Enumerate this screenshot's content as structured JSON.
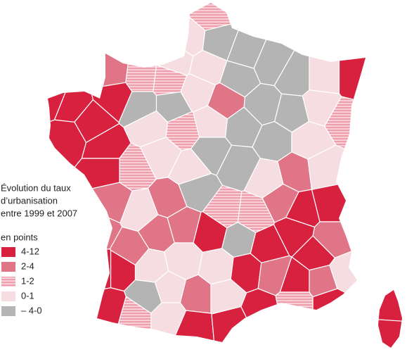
{
  "legend": {
    "title_lines": [
      "Évolution du taux",
      "d’urbanisation",
      "entre 1999 et 2007"
    ],
    "subtitle": "en points",
    "items": [
      {
        "label": "4-12",
        "color": "#d8213f",
        "pattern": false
      },
      {
        "label": "2-4",
        "color": "#e07587",
        "pattern": false
      },
      {
        "label": "1-2",
        "color": "#ef9fac",
        "pattern": true
      },
      {
        "label": "0-1",
        "color": "#f6dde1",
        "pattern": false
      },
      {
        "label": "– 4-0",
        "color": "#b4b4b4",
        "pattern": false
      }
    ]
  }
}
